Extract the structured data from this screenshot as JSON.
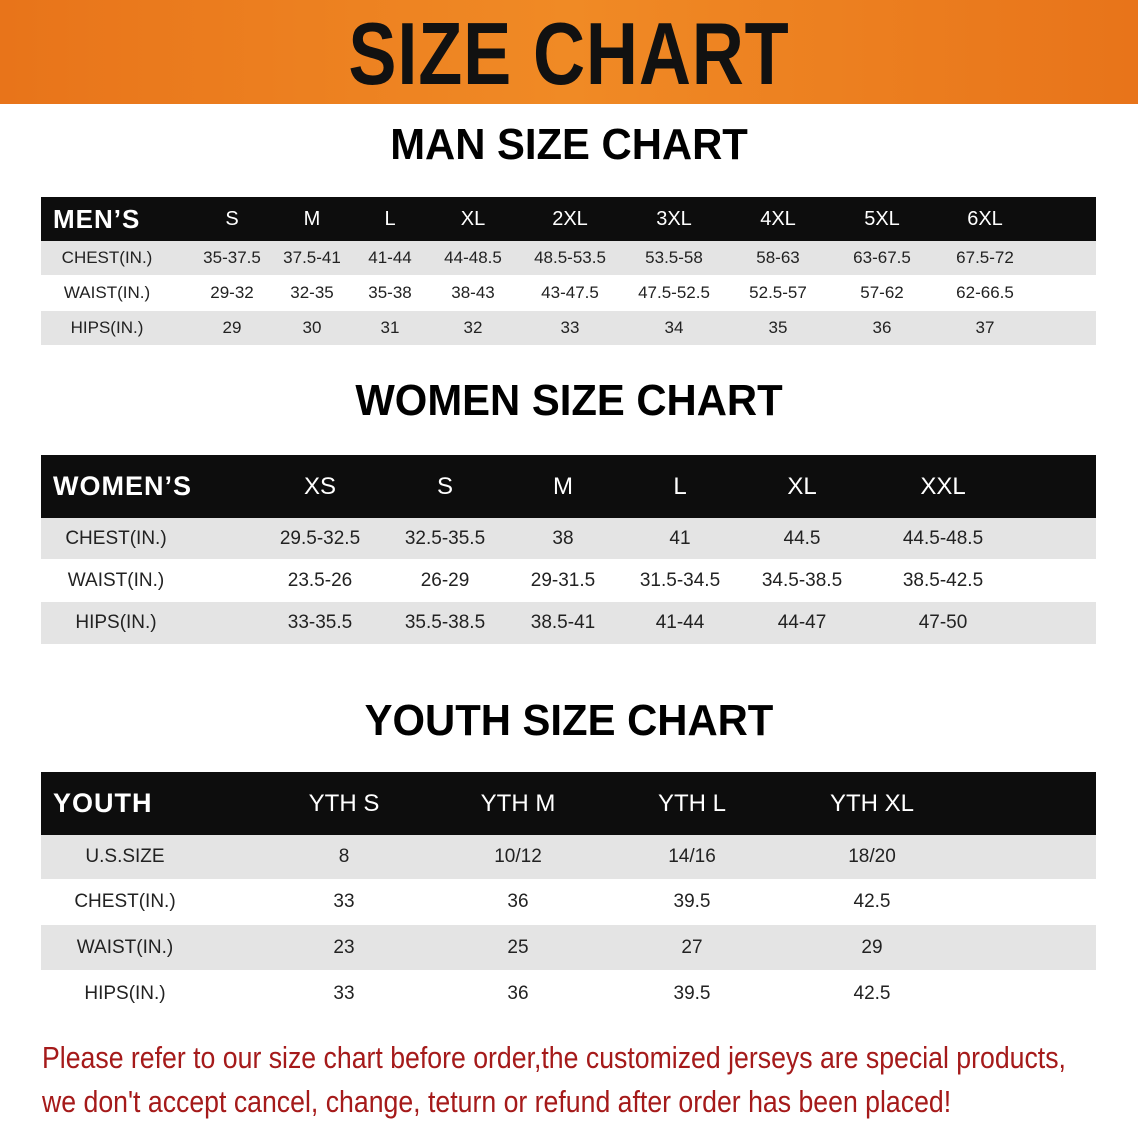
{
  "banner": {
    "title": "SIZE CHART",
    "color": "#ee8220"
  },
  "men": {
    "title": "MAN SIZE CHART",
    "header": "MEN’S",
    "sizes": [
      "S",
      "M",
      "L",
      "XL",
      "2XL",
      "3XL",
      "4XL",
      "5XL",
      "6XL"
    ],
    "rows": [
      {
        "label": "CHEST(IN.)",
        "values": [
          "35-37.5",
          "37.5-41",
          "41-44",
          "44-48.5",
          "48.5-53.5",
          "53.5-58",
          "58-63",
          "63-67.5",
          "67.5-72"
        ]
      },
      {
        "label": "WAIST(IN.)",
        "values": [
          "29-32",
          "32-35",
          "35-38",
          "38-43",
          "43-47.5",
          "47.5-52.5",
          "52.5-57",
          "57-62",
          "62-66.5"
        ]
      },
      {
        "label": "HIPS(IN.)",
        "values": [
          "29",
          "30",
          "31",
          "32",
          "33",
          "34",
          "35",
          "36",
          "37"
        ]
      }
    ]
  },
  "women": {
    "title": "WOMEN SIZE CHART",
    "header": "WOMEN’S",
    "sizes": [
      "XS",
      "S",
      "M",
      "L",
      "XL",
      "XXL"
    ],
    "rows": [
      {
        "label": "CHEST(IN.)",
        "values": [
          "29.5-32.5",
          "32.5-35.5",
          "38",
          "41",
          "44.5",
          "44.5-48.5"
        ]
      },
      {
        "label": "WAIST(IN.)",
        "values": [
          "23.5-26",
          "26-29",
          "29-31.5",
          "31.5-34.5",
          "34.5-38.5",
          "38.5-42.5"
        ]
      },
      {
        "label": "HIPS(IN.)",
        "values": [
          "33-35.5",
          "35.5-38.5",
          "38.5-41",
          "41-44",
          "44-47",
          "47-50"
        ]
      }
    ]
  },
  "youth": {
    "title": "YOUTH SIZE CHART",
    "header": "YOUTH",
    "sizes": [
      "YTH S",
      "YTH M",
      "YTH L",
      "YTH XL"
    ],
    "rows": [
      {
        "label": "U.S.SIZE",
        "values": [
          "8",
          "10/12",
          "14/16",
          "18/20"
        ]
      },
      {
        "label": "CHEST(IN.)",
        "values": [
          "33",
          "36",
          "39.5",
          "42.5"
        ]
      },
      {
        "label": "WAIST(IN.)",
        "values": [
          "23",
          "25",
          "27",
          "29"
        ]
      },
      {
        "label": "HIPS(IN.)",
        "values": [
          "33",
          "36",
          "39.5",
          "42.5"
        ]
      }
    ]
  },
  "note": {
    "line1": "Please refer to our size chart before order,the customized jerseys are special products,",
    "line2": "we don't accept cancel, change, teturn or refund after order has been placed!",
    "color": "#a51a1a"
  }
}
